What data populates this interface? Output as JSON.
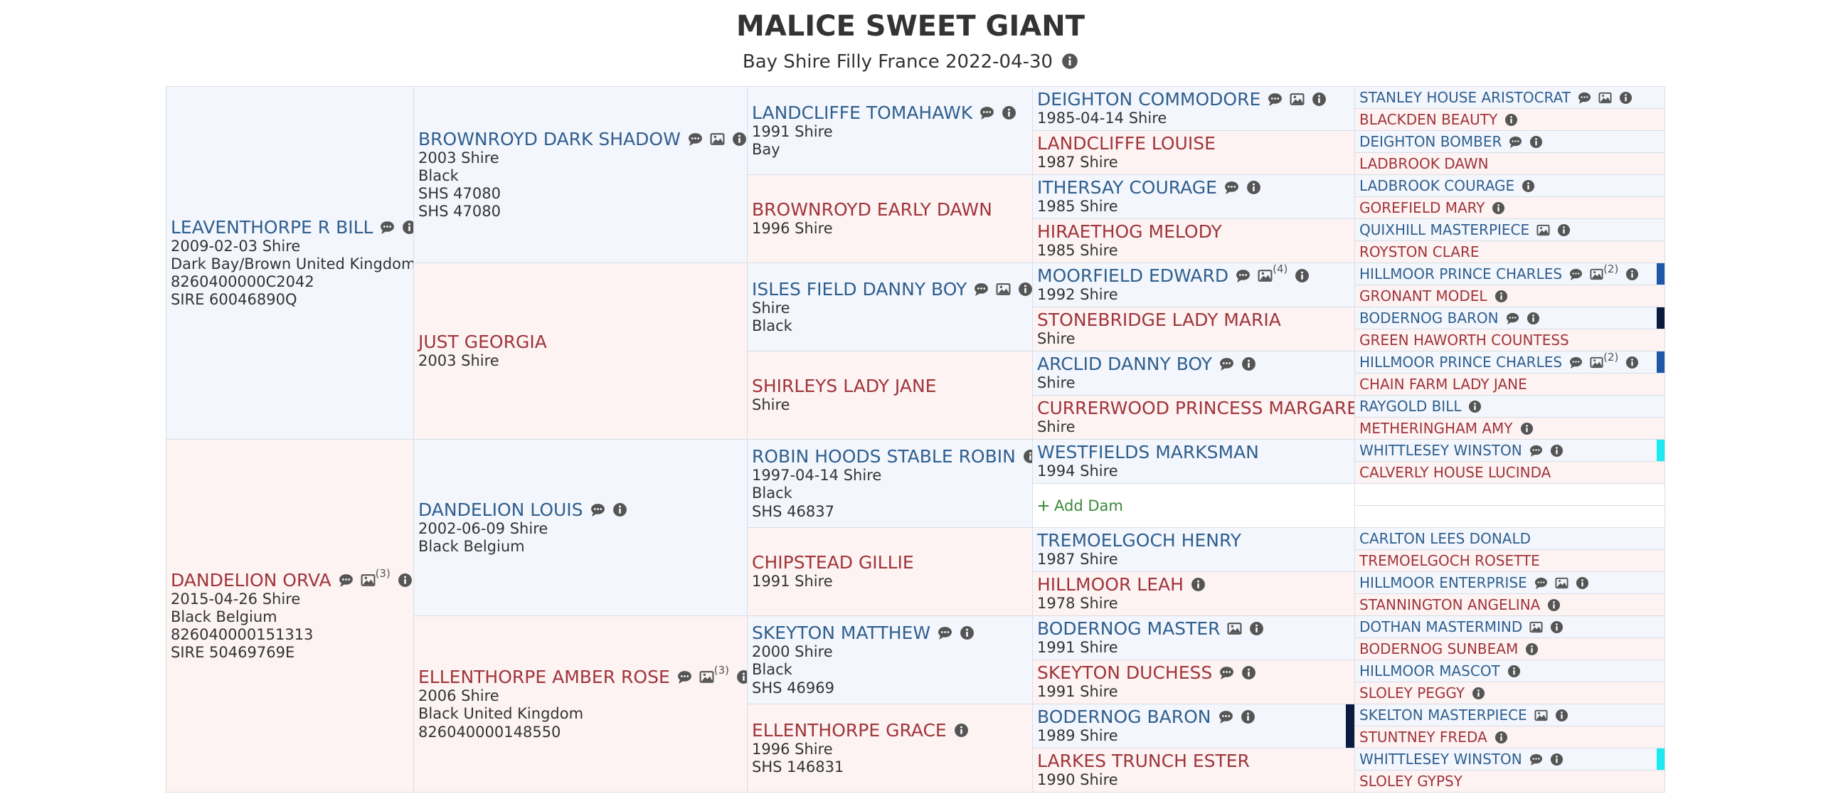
{
  "header": {
    "title": "MALICE SWEET GIANT",
    "subtitle": "Bay Shire Filly France 2022-04-30"
  },
  "columns": [
    [
      {
        "name": "LEAVENTHORPE R BILL",
        "icons": [
          "comment",
          "info"
        ],
        "details": [
          "2009-02-03 Shire",
          "Dark Bay/Brown United Kingdom",
          "8260400000C2042",
          "SIRE 60046890Q"
        ]
      },
      {
        "name": "DANDELION ORVA",
        "icons": [
          "comment",
          "image",
          "info"
        ],
        "image_count": "(3)",
        "details": [
          "2015-04-26 Shire",
          "Black Belgium",
          "826040000151313",
          "SIRE 50469769E"
        ]
      }
    ],
    [
      {
        "name": "BROWNROYD DARK SHADOW",
        "icons": [
          "comment",
          "image",
          "info"
        ],
        "details": [
          "2003 Shire",
          "Black",
          "SHS 47080",
          "SHS 47080"
        ]
      },
      {
        "name": "JUST GEORGIA",
        "icons": [],
        "details": [
          "2003 Shire"
        ]
      },
      {
        "name": "DANDELION LOUIS",
        "icons": [
          "comment",
          "info"
        ],
        "details": [
          "2002-06-09 Shire",
          "Black Belgium"
        ]
      },
      {
        "name": "ELLENTHORPE AMBER ROSE",
        "icons": [
          "comment",
          "image",
          "info"
        ],
        "image_count": "(3)",
        "details": [
          "2006 Shire",
          "Black United Kingdom",
          "826040000148550"
        ]
      }
    ],
    [
      {
        "name": "LANDCLIFFE TOMAHAWK",
        "icons": [
          "comment",
          "info"
        ],
        "details": [
          "1991 Shire",
          "Bay"
        ]
      },
      {
        "name": "BROWNROYD EARLY DAWN",
        "icons": [],
        "details": [
          "1996 Shire"
        ]
      },
      {
        "name": "ISLES FIELD DANNY BOY",
        "icons": [
          "comment",
          "image",
          "info"
        ],
        "details": [
          "Shire",
          "Black"
        ]
      },
      {
        "name": "SHIRLEYS LADY JANE",
        "icons": [],
        "details": [
          "Shire"
        ]
      },
      {
        "name": "ROBIN HOODS STABLE ROBIN",
        "icons": [
          "info"
        ],
        "details": [
          "1997-04-14 Shire",
          "Black",
          "SHS 46837"
        ]
      },
      {
        "name": "CHIPSTEAD GILLIE",
        "icons": [],
        "details": [
          "1991 Shire"
        ]
      },
      {
        "name": "SKEYTON MATTHEW",
        "icons": [
          "comment",
          "info"
        ],
        "details": [
          "2000 Shire",
          "Black",
          "SHS 46969"
        ]
      },
      {
        "name": "ELLENTHORPE GRACE",
        "icons": [
          "info"
        ],
        "details": [
          "1996 Shire",
          "SHS 146831"
        ]
      }
    ],
    [
      {
        "name": "DEIGHTON COMMODORE",
        "icons": [
          "comment",
          "image",
          "info"
        ],
        "details": [
          "1985-04-14 Shire"
        ]
      },
      {
        "name": "LANDCLIFFE LOUISE",
        "icons": [],
        "details": [
          "1987 Shire"
        ]
      },
      {
        "name": "ITHERSAY COURAGE",
        "icons": [
          "comment",
          "info"
        ],
        "details": [
          "1985 Shire"
        ]
      },
      {
        "name": "HIRAETHOG MELODY",
        "icons": [],
        "details": [
          "1985 Shire"
        ]
      },
      {
        "name": "MOORFIELD EDWARD",
        "icons": [
          "comment",
          "image",
          "info"
        ],
        "image_count": "(4)",
        "details": [
          "1992 Shire"
        ]
      },
      {
        "name": "STONEBRIDGE LADY MARIA",
        "icons": [],
        "details": [
          "Shire"
        ]
      },
      {
        "name": "ARCLID DANNY BOY",
        "icons": [
          "comment",
          "info"
        ],
        "details": [
          "Shire"
        ]
      },
      {
        "name": "CURRERWOOD PRINCESS MARGARET",
        "icons": [],
        "details": [
          "Shire"
        ]
      },
      {
        "name": "WESTFIELDS MARKSMAN",
        "icons": [],
        "details": [
          "1994 Shire"
        ]
      },
      {
        "add_label": "Add Dam"
      },
      {
        "name": "TREMOELGOCH HENRY",
        "icons": [],
        "details": [
          "1987 Shire"
        ]
      },
      {
        "name": "HILLMOOR LEAH",
        "icons": [
          "info"
        ],
        "details": [
          "1978 Shire"
        ]
      },
      {
        "name": "BODERNOG MASTER",
        "icons": [
          "image",
          "info"
        ],
        "details": [
          "1991 Shire"
        ]
      },
      {
        "name": "SKEYTON DUCHESS",
        "icons": [
          "comment",
          "info"
        ],
        "details": [
          "1991 Shire"
        ]
      },
      {
        "name": "BODERNOG BARON",
        "icons": [
          "comment",
          "info"
        ],
        "details": [
          "1989 Shire"
        ],
        "marker": "#0b1a3f"
      },
      {
        "name": "LARKES TRUNCH ESTER",
        "icons": [],
        "details": [
          "1990 Shire"
        ]
      }
    ],
    [
      {
        "name": "STANLEY HOUSE ARISTOCRAT",
        "icons": [
          "comment",
          "image",
          "info"
        ]
      },
      {
        "name": "BLACKDEN BEAUTY",
        "icons": [
          "info"
        ]
      },
      {
        "name": "DEIGHTON BOMBER",
        "icons": [
          "comment",
          "info"
        ]
      },
      {
        "name": "LADBROOK DAWN",
        "icons": []
      },
      {
        "name": "LADBROOK COURAGE",
        "icons": [
          "info"
        ]
      },
      {
        "name": "GOREFIELD MARY",
        "icons": [
          "info"
        ]
      },
      {
        "name": "QUIXHILL MASTERPIECE",
        "icons": [
          "image",
          "info"
        ]
      },
      {
        "name": "ROYSTON CLARE",
        "icons": []
      },
      {
        "name": "HILLMOOR PRINCE CHARLES",
        "icons": [
          "comment",
          "image",
          "info"
        ],
        "image_count": "(2)",
        "marker": "#1e56a8"
      },
      {
        "name": "GRONANT MODEL",
        "icons": [
          "info"
        ]
      },
      {
        "name": "BODERNOG BARON",
        "icons": [
          "comment",
          "info"
        ],
        "marker": "#0b1a3f"
      },
      {
        "name": "GREEN HAWORTH COUNTESS",
        "icons": []
      },
      {
        "name": "HILLMOOR PRINCE CHARLES",
        "icons": [
          "comment",
          "image",
          "info"
        ],
        "image_count": "(2)",
        "marker": "#1e56a8"
      },
      {
        "name": "CHAIN FARM LADY JANE",
        "icons": []
      },
      {
        "name": "RAYGOLD BILL",
        "icons": [
          "info"
        ]
      },
      {
        "name": "METHERINGHAM AMY",
        "icons": [
          "info"
        ]
      },
      {
        "name": "WHITTLESEY WINSTON",
        "icons": [
          "comment",
          "info"
        ],
        "marker": "#1de9f0"
      },
      {
        "name": "CALVERLY HOUSE LUCINDA",
        "icons": []
      },
      null,
      null,
      {
        "name": "CARLTON LEES DONALD",
        "icons": []
      },
      {
        "name": "TREMOELGOCH ROSETTE",
        "icons": []
      },
      {
        "name": "HILLMOOR ENTERPRISE",
        "icons": [
          "comment",
          "image",
          "info"
        ]
      },
      {
        "name": "STANNINGTON ANGELINA",
        "icons": [
          "info"
        ]
      },
      {
        "name": "DOTHAN MASTERMIND",
        "icons": [
          "image",
          "info"
        ]
      },
      {
        "name": "BODERNOG SUNBEAM",
        "icons": [
          "info"
        ]
      },
      {
        "name": "HILLMOOR MASCOT",
        "icons": [
          "info"
        ]
      },
      {
        "name": "SLOLEY PEGGY",
        "icons": [
          "info"
        ]
      },
      {
        "name": "SKELTON MASTERPIECE",
        "icons": [
          "image",
          "info"
        ]
      },
      {
        "name": "STUNTNEY FREDA",
        "icons": [
          "info"
        ]
      },
      {
        "name": "WHITTLESEY WINSTON",
        "icons": [
          "comment",
          "info"
        ],
        "marker": "#1de9f0"
      },
      {
        "name": "SLOLEY GYPSY",
        "icons": []
      }
    ]
  ]
}
